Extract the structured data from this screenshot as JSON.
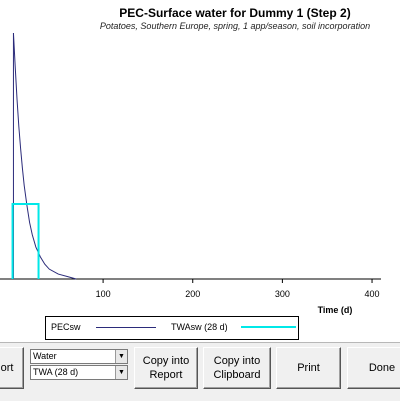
{
  "window": {
    "title": "PEC-Surface water for Dummy 1 (Step 2)",
    "subtitle": "Potatoes, Southern Europe, spring, 1 app/season, soil incorporation"
  },
  "chart_data": {
    "type": "line",
    "xlabel": "Time (d)",
    "ylabel": "",
    "xlim": [
      -15,
      410
    ],
    "x_ticks": [
      100,
      200,
      300,
      400
    ],
    "ylim": [
      0,
      1
    ],
    "series": [
      {
        "name": "PECsw",
        "color": "#2b2b7a",
        "style": "decay",
        "x": [
          0,
          2,
          4,
          6,
          8,
          10,
          12,
          15,
          18,
          21,
          25,
          30,
          35,
          40,
          50,
          60,
          70
        ],
        "y": [
          1.0,
          0.86,
          0.73,
          0.62,
          0.53,
          0.45,
          0.38,
          0.3,
          0.23,
          0.18,
          0.13,
          0.09,
          0.06,
          0.04,
          0.02,
          0.01,
          0.0
        ]
      },
      {
        "name": "TWAsw (28 d)",
        "color": "#00e8e8",
        "style": "step",
        "x": [
          -1,
          28
        ],
        "y": 0.305
      }
    ]
  },
  "legend": {
    "items": [
      {
        "label": "PECsw",
        "color": "#2b2b7a"
      },
      {
        "label": "TWAsw (28 d)",
        "color": "#00e8e8"
      }
    ]
  },
  "toolbar": {
    "report_label": "ort",
    "compartment_select": "Water",
    "value_select": "TWA (28 d)",
    "copy_report_label": "Copy into\nReport",
    "copy_clipboard_label": "Copy into\nClipboard",
    "print_label": "Print",
    "done_label": "Done",
    "dropdown_arrow": "▼"
  }
}
